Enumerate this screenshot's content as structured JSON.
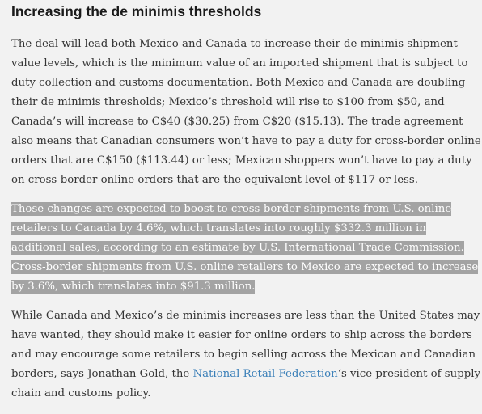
{
  "article": {
    "heading": "Increasing the de minimis thresholds",
    "paragraph1": "The deal will lead both Mexico and Canada to increase their de minimis shipment value levels, which is the minimum value of an imported shipment that is subject to duty collection and customs documentation. Both Mexico and Canada are doubling their de minimis thresholds; Mexico’s threshold will rise to $100 from $50, and Canada’s will increase to C$40 ($30.25) from C$20 ($15.13). The trade agreement also means that Canadian consumers won’t have to pay a duty for cross-border online orders that are C$150 ($113.44) or less; Mexican shoppers won’t have to pay a duty on cross-border online orders that are the equivalent level of $117 or less.",
    "paragraph2_highlighted": "Those changes are expected to boost to cross-border shipments from U.S. online retailers to Canada by 4.6%, which translates into roughly $332.3 million in additional sales, according to an estimate by U.S. International Trade Commission. Cross-border shipments from U.S. online retailers to Mexico are expected to increase by 3.6%, which translates into $91.3 million.",
    "paragraph3_before_link": "While Canada and Mexico’s de minimis increases are less than the United States may have wanted, they should make it easier for online orders to ship across the borders and may encourage some retailers to begin selling across the Mexican and Canadian borders, says Jonathan Gold, the ",
    "paragraph3_link": "National Retail Federation",
    "paragraph3_after_link": "‘s vice president of supply chain and customs policy."
  },
  "colors": {
    "background": "#f2f2f2",
    "text": "#333333",
    "highlight": "#a3a3a3",
    "link": "#3a7fb8"
  }
}
